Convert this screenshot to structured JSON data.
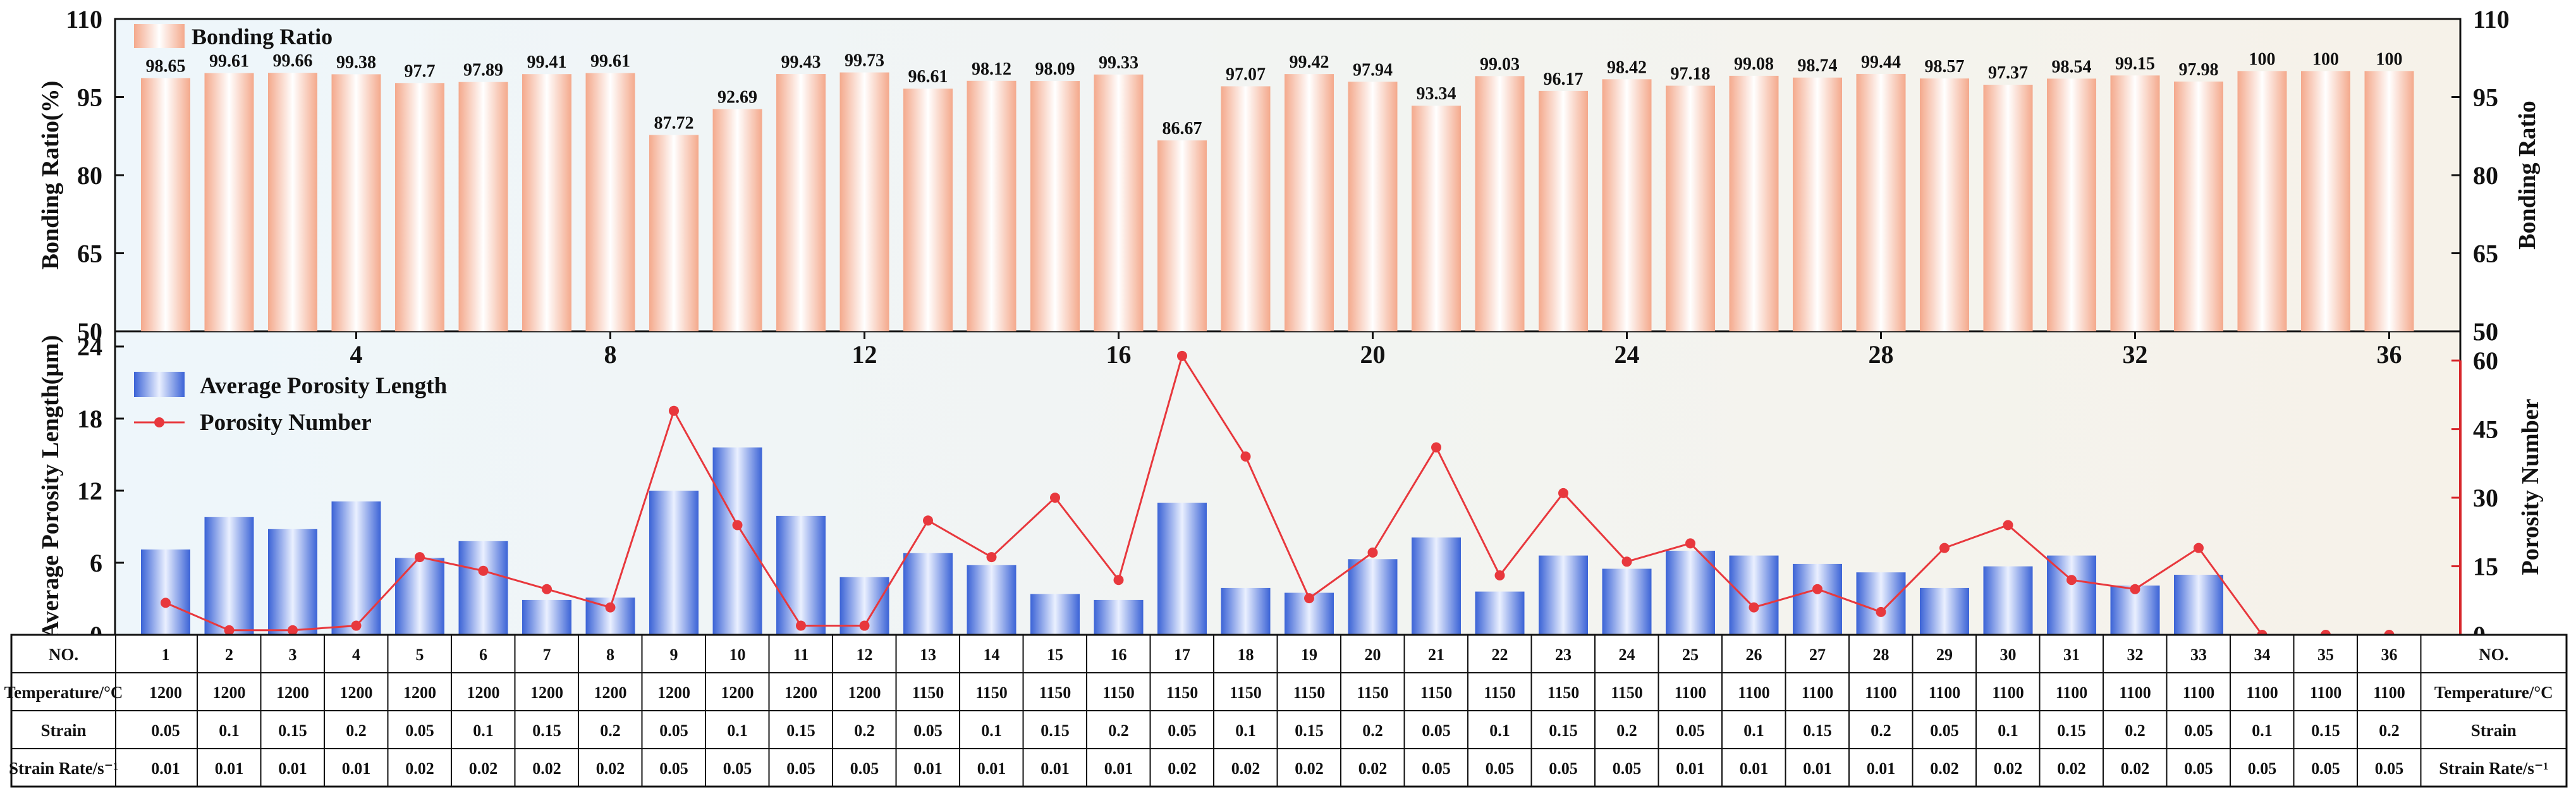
{
  "chart_data": [
    {
      "type": "bar",
      "title": "",
      "legend": {
        "bar_label": "Bonding Ratio",
        "placement": "top-left"
      },
      "ylabel_left": "Bonding Ratio(%)",
      "ylabel_right": "Bonding Ratio",
      "ylim": [
        50,
        110
      ],
      "yticks": [
        "50",
        "65",
        "80",
        "95",
        "110"
      ],
      "categories": [
        "1",
        "2",
        "3",
        "4",
        "5",
        "6",
        "7",
        "8",
        "9",
        "10",
        "11",
        "12",
        "13",
        "14",
        "15",
        "16",
        "17",
        "18",
        "19",
        "20",
        "21",
        "22",
        "23",
        "24",
        "25",
        "26",
        "27",
        "28",
        "29",
        "30",
        "31",
        "32",
        "33",
        "34",
        "35",
        "36"
      ],
      "values": [
        98.65,
        99.61,
        99.66,
        99.38,
        97.7,
        97.89,
        99.41,
        99.61,
        87.72,
        92.69,
        99.43,
        99.73,
        96.61,
        98.12,
        98.09,
        99.33,
        86.67,
        97.07,
        99.42,
        97.94,
        93.34,
        99.03,
        96.17,
        98.42,
        97.18,
        99.08,
        98.74,
        99.44,
        98.57,
        97.37,
        98.54,
        99.15,
        97.98,
        100,
        100,
        100
      ],
      "value_labels": [
        "98.65",
        "99.61",
        "99.66",
        "99.38",
        "97.7",
        "97.89",
        "99.41",
        "99.61",
        "87.72",
        "92.69",
        "99.43",
        "99.73",
        "96.61",
        "98.12",
        "98.09",
        "99.33",
        "86.67",
        "97.07",
        "99.42",
        "97.94",
        "93.34",
        "99.03",
        "96.17",
        "98.42",
        "97.18",
        "99.08",
        "98.74",
        "99.44",
        "98.57",
        "97.37",
        "98.54",
        "99.15",
        "97.98",
        "100",
        "100",
        "100"
      ],
      "xticks": [
        "4",
        "8",
        "12",
        "16",
        "20",
        "24",
        "28",
        "32",
        "36"
      ]
    },
    {
      "type": "bar+line",
      "title": "",
      "ylabel_left": "Average Porosity Length(μm)",
      "ylabel_right": "Porosity Number",
      "ylim_left": [
        0,
        24
      ],
      "ylim_right": [
        0,
        65
      ],
      "yticks_left": [
        "0",
        "6",
        "12",
        "18",
        "24"
      ],
      "yticks_right": [
        "0",
        "15",
        "30",
        "45",
        "60"
      ],
      "right_top_label": "50",
      "legend_placement": "top-left",
      "series": [
        {
          "name": "Average Porosity Length",
          "kind": "bar",
          "axis": "left",
          "values": [
            7.1,
            9.8,
            8.8,
            11.1,
            6.4,
            7.8,
            2.9,
            3.1,
            12.0,
            15.6,
            9.9,
            4.8,
            6.8,
            5.8,
            3.4,
            2.9,
            11.0,
            3.9,
            3.5,
            6.3,
            8.1,
            3.6,
            6.6,
            5.5,
            7.0,
            6.6,
            5.9,
            5.2,
            3.9,
            5.7,
            6.6,
            4.1,
            5.0,
            0,
            0,
            0
          ]
        },
        {
          "name": "Porosity Number",
          "kind": "line",
          "axis": "right",
          "values": [
            7,
            1,
            1,
            2,
            17,
            14,
            10,
            6,
            49,
            24,
            2,
            2,
            25,
            17,
            30,
            12,
            61,
            39,
            8,
            18,
            41,
            13,
            31,
            16,
            20,
            6,
            10,
            5,
            19,
            24,
            12,
            10,
            19,
            0,
            0,
            0
          ]
        }
      ],
      "xticks": [
        "4",
        "8",
        "12",
        "16",
        "20",
        "24",
        "28",
        "32",
        "36"
      ]
    },
    {
      "type": "table",
      "row_headers": [
        "NO.",
        "Temperature/°C",
        "Strain",
        "Strain Rate/s⁻¹"
      ],
      "columns": [
        "1",
        "2",
        "3",
        "4",
        "5",
        "6",
        "7",
        "8",
        "9",
        "10",
        "11",
        "12",
        "13",
        "14",
        "15",
        "16",
        "17",
        "18",
        "19",
        "20",
        "21",
        "22",
        "23",
        "24",
        "25",
        "26",
        "27",
        "28",
        "29",
        "30",
        "31",
        "32",
        "33",
        "34",
        "35",
        "36"
      ],
      "temperature": [
        "1200",
        "1200",
        "1200",
        "1200",
        "1200",
        "1200",
        "1200",
        "1200",
        "1200",
        "1200",
        "1200",
        "1200",
        "1150",
        "1150",
        "1150",
        "1150",
        "1150",
        "1150",
        "1150",
        "1150",
        "1150",
        "1150",
        "1150",
        "1150",
        "1100",
        "1100",
        "1100",
        "1100",
        "1100",
        "1100",
        "1100",
        "1100",
        "1100",
        "1100",
        "1100",
        "1100"
      ],
      "strain": [
        "0.05",
        "0.1",
        "0.15",
        "0.2",
        "0.05",
        "0.1",
        "0.15",
        "0.2",
        "0.05",
        "0.1",
        "0.15",
        "0.2",
        "0.05",
        "0.1",
        "0.15",
        "0.2",
        "0.05",
        "0.1",
        "0.15",
        "0.2",
        "0.05",
        "0.1",
        "0.15",
        "0.2",
        "0.05",
        "0.1",
        "0.15",
        "0.2",
        "0.05",
        "0.1",
        "0.15",
        "0.2",
        "0.05",
        "0.1",
        "0.15",
        "0.2"
      ],
      "strain_rate": [
        "0.01",
        "0.01",
        "0.01",
        "0.01",
        "0.02",
        "0.02",
        "0.02",
        "0.02",
        "0.05",
        "0.05",
        "0.05",
        "0.05",
        "0.01",
        "0.01",
        "0.01",
        "0.01",
        "0.02",
        "0.02",
        "0.02",
        "0.02",
        "0.05",
        "0.05",
        "0.05",
        "0.05",
        "0.01",
        "0.01",
        "0.01",
        "0.01",
        "0.02",
        "0.02",
        "0.02",
        "0.02",
        "0.05",
        "0.05",
        "0.05",
        "0.05"
      ]
    }
  ],
  "colors": {
    "bar_top_edge": "#f4a98c",
    "bar_top_center": "#ffffff",
    "bar_bottom_edge": "#3b63d6",
    "bar_bottom_center": "#e8efff",
    "line": "#e8383d",
    "marker": "#e8383d",
    "right_axis_bottom": "#d7262b",
    "grid_bg_left": "#eef6fb",
    "grid_bg_right": "#f5f1e8"
  }
}
